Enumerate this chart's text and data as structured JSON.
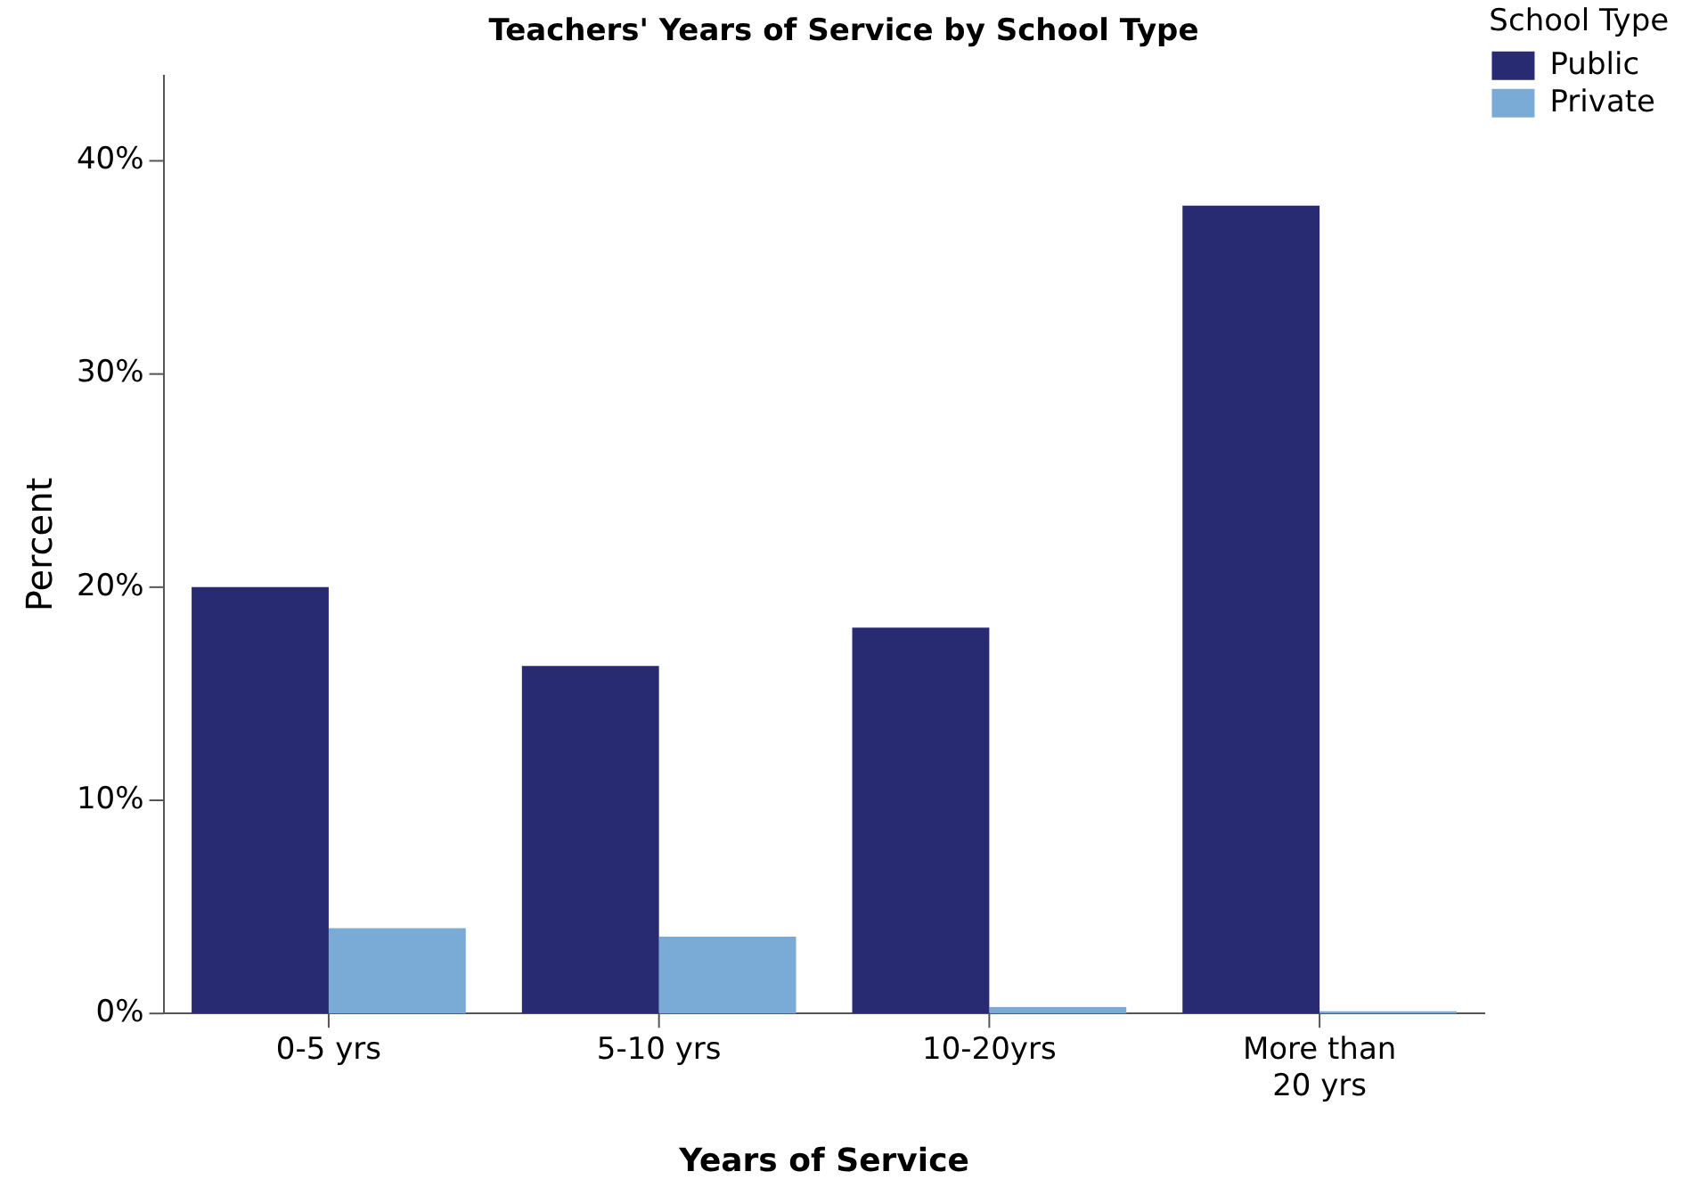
{
  "chart_data": {
    "type": "bar",
    "title": "Teachers' Years of Service by School Type",
    "xlabel": "Years of Service",
    "ylabel": "Percent",
    "legend_title": "School Type",
    "categories": [
      "0-5 yrs",
      "5-10 yrs",
      "10-20yrs",
      "More than 20 yrs"
    ],
    "series": [
      {
        "name": "Public",
        "color": "#282a72",
        "values": [
          20.0,
          16.3,
          18.1,
          37.9
        ]
      },
      {
        "name": "Private",
        "color": "#7aaad6",
        "values": [
          4.0,
          3.6,
          0.3,
          0.1
        ]
      }
    ],
    "ylim": [
      0,
      44
    ],
    "yticks": [
      {
        "value": 0,
        "label": "0%"
      },
      {
        "value": 10,
        "label": "10%"
      },
      {
        "value": 20,
        "label": "20%"
      },
      {
        "value": 30,
        "label": "30%"
      },
      {
        "value": 40,
        "label": "40%"
      }
    ],
    "grid": false,
    "legend": "top right"
  }
}
